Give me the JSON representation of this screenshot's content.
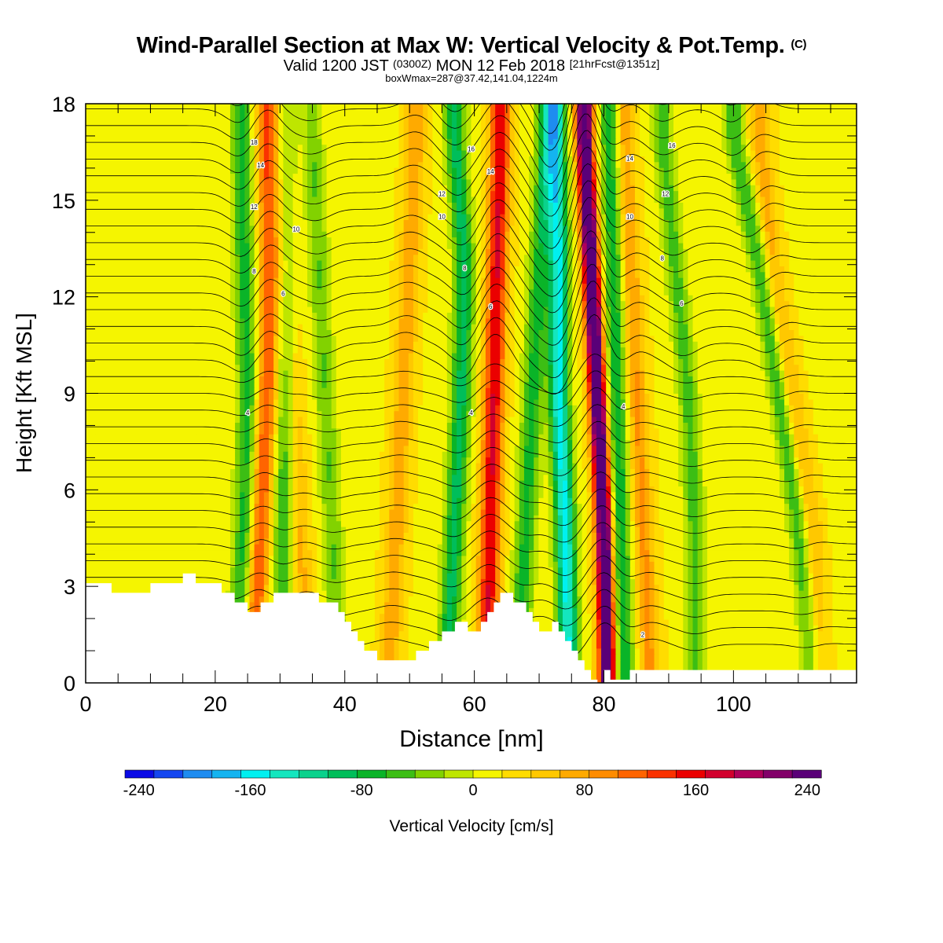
{
  "title": {
    "main": "Wind-Parallel Section at Max W: Vertical Velocity & Pot.Temp.",
    "copyright": "(C)",
    "valid_prefix": "Valid 1200 JST",
    "valid_utc": "(0300Z)",
    "valid_date": "MON 12 Feb 2018",
    "forecast": "[21hrFcst@1351z]",
    "box_info": "boxWmax=287@37.42,141.04,1224m"
  },
  "chart_data": {
    "type": "heatmap",
    "xlabel": "Distance [nm]",
    "ylabel": "Height [Kft MSL]",
    "xlim": [
      0,
      119
    ],
    "ylim": [
      0,
      18
    ],
    "x_ticks": [
      0,
      20,
      40,
      60,
      80,
      100
    ],
    "y_ticks": [
      0,
      3,
      6,
      9,
      12,
      15,
      18
    ],
    "colorbar": {
      "label": "Vertical Velocity [cm/s]",
      "ticks": [
        "-240",
        "-160",
        "-80",
        "0",
        "80",
        "160",
        "240"
      ],
      "min": -250,
      "max": 250,
      "colors": [
        "#0a0ae6",
        "#1446f0",
        "#1e8cf0",
        "#14b4f0",
        "#00f0f0",
        "#14e6be",
        "#0ad28c",
        "#00be5a",
        "#0ab428",
        "#3cbe14",
        "#82d200",
        "#bee600",
        "#f5f500",
        "#ffdc00",
        "#ffc800",
        "#ffaa00",
        "#ff8c00",
        "#ff6400",
        "#fa3200",
        "#eb0000",
        "#d2002d",
        "#af005a",
        "#820069",
        "#5a0078"
      ]
    },
    "terrain_height_kft": [
      [
        0,
        3.1
      ],
      [
        4,
        3.1
      ],
      [
        4,
        2.8
      ],
      [
        10,
        2.8
      ],
      [
        10,
        3.1
      ],
      [
        15,
        3.1
      ],
      [
        15,
        3.4
      ],
      [
        17,
        3.4
      ],
      [
        17,
        3.1
      ],
      [
        21,
        3.1
      ],
      [
        21,
        2.8
      ],
      [
        23,
        2.8
      ],
      [
        23,
        2.5
      ],
      [
        25,
        2.5
      ],
      [
        25,
        2.2
      ],
      [
        27,
        2.2
      ],
      [
        27,
        2.5
      ],
      [
        29,
        2.5
      ],
      [
        29,
        2.8
      ],
      [
        36,
        2.8
      ],
      [
        36,
        2.5
      ],
      [
        39,
        2.5
      ],
      [
        39,
        2.2
      ],
      [
        40,
        2.2
      ],
      [
        40,
        1.9
      ],
      [
        41,
        1.9
      ],
      [
        41,
        1.6
      ],
      [
        42,
        1.6
      ],
      [
        42,
        1.3
      ],
      [
        43,
        1.3
      ],
      [
        43,
        1.0
      ],
      [
        45,
        1.0
      ],
      [
        45,
        0.7
      ],
      [
        51,
        0.7
      ],
      [
        51,
        1.0
      ],
      [
        53,
        1.0
      ],
      [
        53,
        1.3
      ],
      [
        55,
        1.3
      ],
      [
        55,
        1.6
      ],
      [
        57,
        1.6
      ],
      [
        57,
        1.9
      ],
      [
        59,
        1.9
      ],
      [
        59,
        1.6
      ],
      [
        61,
        1.6
      ],
      [
        61,
        1.9
      ],
      [
        62,
        1.9
      ],
      [
        62,
        2.2
      ],
      [
        63,
        2.2
      ],
      [
        63,
        2.5
      ],
      [
        64,
        2.5
      ],
      [
        64,
        2.8
      ],
      [
        66,
        2.8
      ],
      [
        66,
        2.5
      ],
      [
        68,
        2.5
      ],
      [
        68,
        2.2
      ],
      [
        69,
        2.2
      ],
      [
        69,
        1.9
      ],
      [
        70,
        1.9
      ],
      [
        70,
        1.6
      ],
      [
        72,
        1.6
      ],
      [
        72,
        1.9
      ],
      [
        73,
        1.9
      ],
      [
        73,
        1.6
      ],
      [
        74,
        1.6
      ],
      [
        74,
        1.3
      ],
      [
        75,
        1.3
      ],
      [
        75,
        1.0
      ],
      [
        76,
        1.0
      ],
      [
        76,
        0.7
      ],
      [
        77,
        0.7
      ],
      [
        77,
        0.4
      ],
      [
        78,
        0.4
      ],
      [
        78,
        0.1
      ],
      [
        79,
        0.1
      ],
      [
        79,
        0.0
      ],
      [
        80,
        0.0
      ],
      [
        80,
        0.4
      ],
      [
        81,
        0.4
      ],
      [
        81,
        0.1
      ],
      [
        84,
        0.1
      ],
      [
        84,
        0.4
      ],
      [
        119,
        0.4
      ]
    ],
    "updraft_bands": [
      {
        "x": [
          26,
          27,
          28,
          28.5,
          28
        ],
        "amplitude_cm_s": 110
      },
      {
        "x": [
          34,
          33,
          32,
          31,
          30
        ],
        "amplitude_cm_s": 50
      },
      {
        "x": [
          47,
          48,
          49,
          50,
          51
        ],
        "amplitude_cm_s": 60
      },
      {
        "x": [
          62,
          62.5,
          63,
          63.5,
          64
        ],
        "amplitude_cm_s": 150
      },
      {
        "x": [
          80.5,
          80,
          79,
          78,
          77
        ],
        "amplitude_cm_s": 287
      },
      {
        "x": [
          87,
          86,
          85,
          84,
          83
        ],
        "amplitude_cm_s": 70
      },
      {
        "x": [
          113,
          112,
          109,
          106,
          104
        ],
        "amplitude_cm_s": 55
      }
    ],
    "downdraft_bands": [
      {
        "x": [
          23.5,
          24.5,
          25,
          24.5,
          24
        ],
        "amplitude_cm_s": -90
      },
      {
        "x": [
          30,
          30.5,
          31,
          31,
          30.5
        ],
        "amplitude_cm_s": -80
      },
      {
        "x": [
          39,
          38,
          37,
          36,
          35
        ],
        "amplitude_cm_s": -60
      },
      {
        "x": [
          56,
          57,
          58,
          58.5,
          57
        ],
        "amplitude_cm_s": -110
      },
      {
        "x": [
          67,
          68,
          69,
          70,
          71
        ],
        "amplitude_cm_s": -90
      },
      {
        "x": [
          74.5,
          74,
          73,
          73,
          72.5
        ],
        "amplitude_cm_s": -170
      },
      {
        "x": [
          83,
          82.5,
          82,
          81.5,
          81
        ],
        "amplitude_cm_s": -100
      },
      {
        "x": [
          94,
          94,
          93,
          91,
          89
        ],
        "amplitude_cm_s": -70
      },
      {
        "x": [
          112,
          110,
          107,
          104,
          100
        ],
        "amplitude_cm_s": -80
      }
    ],
    "band_levels_kft": [
      1,
      5,
      9,
      13,
      17
    ],
    "theta_contour_labels": [
      {
        "text": "18",
        "x": 26,
        "y": 16.8
      },
      {
        "text": "14",
        "x": 27,
        "y": 16.1
      },
      {
        "text": "12",
        "x": 26,
        "y": 14.8
      },
      {
        "text": "10",
        "x": 32.5,
        "y": 14.1
      },
      {
        "text": "8",
        "x": 26,
        "y": 12.8
      },
      {
        "text": "6",
        "x": 30.5,
        "y": 12.1
      },
      {
        "text": "4",
        "x": 25,
        "y": 8.4
      },
      {
        "text": "16",
        "x": 59.5,
        "y": 16.6
      },
      {
        "text": "14",
        "x": 62.5,
        "y": 15.9
      },
      {
        "text": "12",
        "x": 55,
        "y": 15.2
      },
      {
        "text": "10",
        "x": 55,
        "y": 14.5
      },
      {
        "text": "8",
        "x": 58.5,
        "y": 12.9
      },
      {
        "text": "6",
        "x": 62.5,
        "y": 11.7
      },
      {
        "text": "4",
        "x": 59.5,
        "y": 8.4
      },
      {
        "text": "16",
        "x": 90.5,
        "y": 16.7
      },
      {
        "text": "14",
        "x": 84,
        "y": 16.3
      },
      {
        "text": "12",
        "x": 89.5,
        "y": 15.2
      },
      {
        "text": "10",
        "x": 84,
        "y": 14.5
      },
      {
        "text": "8",
        "x": 89,
        "y": 13.2
      },
      {
        "text": "6",
        "x": 92,
        "y": 11.8
      },
      {
        "text": "4",
        "x": 83,
        "y": 8.6
      },
      {
        "text": "2",
        "x": 86,
        "y": 1.5
      }
    ]
  }
}
